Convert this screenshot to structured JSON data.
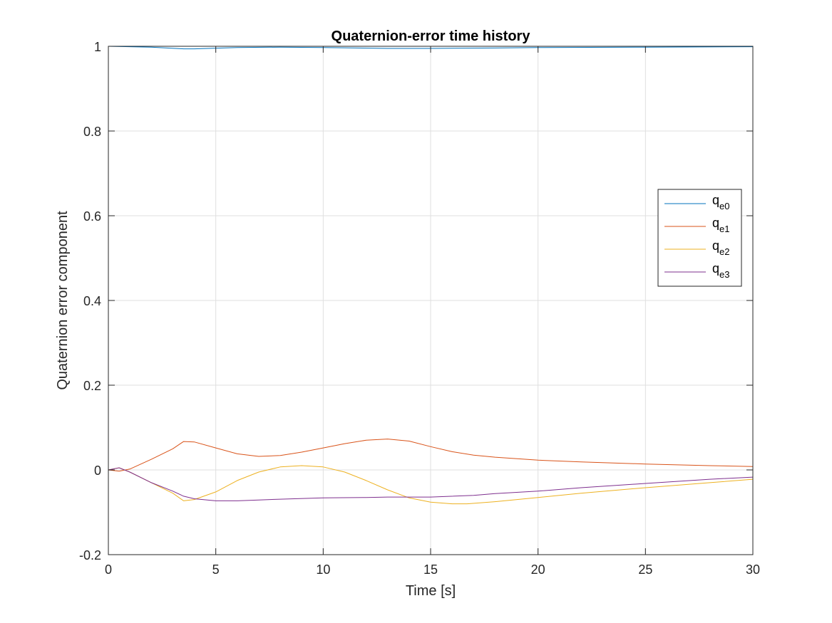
{
  "chart_data": {
    "type": "line",
    "title": "Quaternion-error time history",
    "xlabel": "Time [s]",
    "ylabel": "Quaternion error component",
    "xlim": [
      0,
      30
    ],
    "ylim": [
      -0.2,
      1
    ],
    "grid": true,
    "legend_position": "right",
    "x_ticks": [
      "0",
      "5",
      "10",
      "15",
      "20",
      "25",
      "30"
    ],
    "y_ticks": [
      "-0.2",
      "0",
      "0.2",
      "0.4",
      "0.6",
      "0.8",
      "1"
    ],
    "series": [
      {
        "name": "q",
        "subscript": "e0",
        "color": "#0072BD",
        "x": [
          0,
          2,
          3.5,
          4,
          6,
          8,
          10,
          13,
          15,
          18,
          20,
          25,
          30
        ],
        "y": [
          1.0,
          0.998,
          0.994,
          0.994,
          0.997,
          0.998,
          0.997,
          0.995,
          0.995,
          0.996,
          0.997,
          0.998,
          0.999
        ]
      },
      {
        "name": "q",
        "subscript": "e1",
        "color": "#D95319",
        "x": [
          0,
          0.5,
          1,
          2,
          3,
          3.5,
          4,
          5,
          6,
          7,
          8,
          9,
          10,
          11,
          12,
          13,
          14,
          15,
          16,
          17,
          18,
          20,
          22,
          25,
          28,
          30
        ],
        "y": [
          0,
          -0.003,
          0.002,
          0.025,
          0.05,
          0.067,
          0.066,
          0.052,
          0.038,
          0.032,
          0.034,
          0.042,
          0.052,
          0.062,
          0.07,
          0.073,
          0.068,
          0.055,
          0.043,
          0.035,
          0.03,
          0.023,
          0.019,
          0.014,
          0.01,
          0.008
        ]
      },
      {
        "name": "q",
        "subscript": "e2",
        "color": "#EDB120",
        "x": [
          0,
          0.5,
          1,
          2,
          3,
          3.5,
          4,
          5,
          6,
          7,
          8,
          9,
          10,
          11,
          12,
          13,
          14,
          15,
          16,
          16.7,
          18,
          20,
          22,
          25,
          28,
          30
        ],
        "y": [
          0,
          0.005,
          -0.005,
          -0.03,
          -0.055,
          -0.073,
          -0.07,
          -0.052,
          -0.025,
          -0.005,
          0.007,
          0.01,
          0.007,
          -0.005,
          -0.025,
          -0.047,
          -0.066,
          -0.076,
          -0.08,
          -0.08,
          -0.075,
          -0.065,
          -0.055,
          -0.042,
          -0.03,
          -0.022
        ]
      },
      {
        "name": "q",
        "subscript": "e3",
        "color": "#7E2F8E",
        "x": [
          0,
          0.5,
          1,
          2,
          3,
          3.5,
          4,
          5,
          6,
          7,
          8,
          10,
          12,
          13,
          15,
          17,
          18,
          20,
          22,
          25,
          28,
          30
        ],
        "y": [
          0,
          0.005,
          -0.005,
          -0.03,
          -0.05,
          -0.062,
          -0.068,
          -0.073,
          -0.073,
          -0.071,
          -0.069,
          -0.066,
          -0.065,
          -0.064,
          -0.064,
          -0.06,
          -0.056,
          -0.05,
          -0.042,
          -0.032,
          -0.022,
          -0.017
        ]
      }
    ]
  }
}
